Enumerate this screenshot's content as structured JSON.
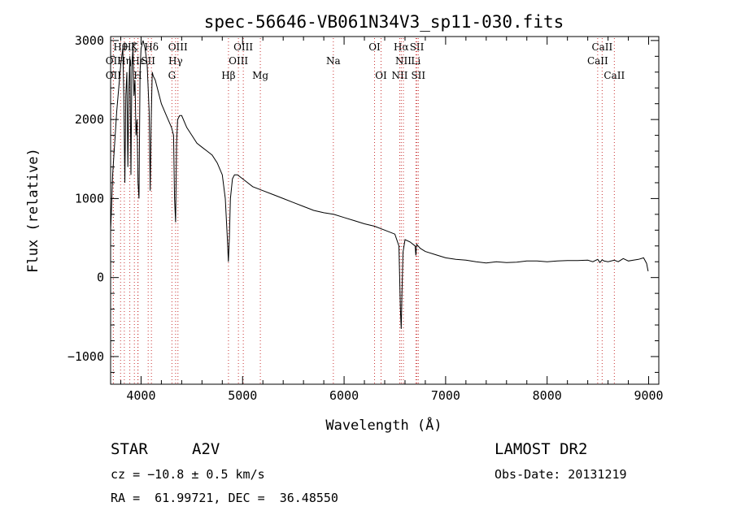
{
  "chart_data": {
    "type": "line",
    "title": "spec-56646-VB061N34V3_sp11-030.fits",
    "xlabel": "Wavelength (Å)",
    "ylabel": "Flux (relative)",
    "xlim": [
      3700,
      9100
    ],
    "ylim": [
      -1350,
      3050
    ],
    "xticks": [
      4000,
      5000,
      6000,
      7000,
      8000,
      9000
    ],
    "yticks": [
      -1000,
      0,
      1000,
      2000,
      3000
    ],
    "series": [
      {
        "x": [
          3700,
          3710,
          3720,
          3740,
          3760,
          3780,
          3800,
          3820,
          3830,
          3840,
          3850,
          3860,
          3870,
          3880,
          3890,
          3900,
          3910,
          3920,
          3930,
          3940,
          3950,
          3960,
          3970,
          3980,
          3990,
          4000,
          4020,
          4040,
          4060,
          4080,
          4090,
          4100,
          4110,
          4120,
          4140,
          4160,
          4180,
          4200,
          4250,
          4300,
          4320,
          4330,
          4340,
          4350,
          4360,
          4380,
          4400,
          4450,
          4500,
          4550,
          4600,
          4650,
          4700,
          4750,
          4800,
          4830,
          4850,
          4860,
          4870,
          4880,
          4900,
          4920,
          4950,
          5000,
          5100,
          5200,
          5300,
          5400,
          5500,
          5600,
          5700,
          5800,
          5900,
          6000,
          6100,
          6200,
          6300,
          6400,
          6500,
          6540,
          6555,
          6563,
          6570,
          6580,
          6600,
          6650,
          6700,
          6707,
          6715,
          6750,
          6800,
          6900,
          7000,
          7100,
          7200,
          7300,
          7400,
          7500,
          7600,
          7700,
          7800,
          7900,
          8000,
          8100,
          8200,
          8300,
          8400,
          8450,
          8498,
          8520,
          8542,
          8560,
          8600,
          8662,
          8700,
          8750,
          8800,
          8850,
          8900,
          8950,
          8980,
          8990,
          8995
        ],
        "y": [
          600,
          900,
          1300,
          1700,
          2100,
          2400,
          2700,
          2900,
          2300,
          1200,
          2300,
          2600,
          1400,
          2400,
          2800,
          1300,
          2700,
          2900,
          2300,
          2500,
          1800,
          2000,
          1200,
          1000,
          2600,
          2900,
          3000,
          2900,
          2700,
          2100,
          1100,
          2000,
          2600,
          2550,
          2500,
          2400,
          2300,
          2200,
          2050,
          1900,
          1800,
          1000,
          700,
          1700,
          2000,
          2050,
          2050,
          1900,
          1800,
          1700,
          1650,
          1600,
          1550,
          1450,
          1300,
          1000,
          500,
          200,
          500,
          1000,
          1250,
          1300,
          1300,
          1250,
          1150,
          1100,
          1050,
          1000,
          950,
          900,
          850,
          820,
          800,
          760,
          720,
          680,
          650,
          600,
          550,
          400,
          -400,
          -650,
          -200,
          320,
          480,
          450,
          400,
          280,
          420,
          370,
          330,
          290,
          250,
          230,
          220,
          200,
          185,
          200,
          190,
          195,
          210,
          210,
          200,
          210,
          215,
          215,
          220,
          200,
          230,
          190,
          225,
          210,
          200,
          220,
          200,
          240,
          210,
          220,
          230,
          250,
          180,
          110,
          80
        ]
      }
    ],
    "line_markers": [
      {
        "label": "OII",
        "x": 3727,
        "row": 3
      },
      {
        "label": "OII",
        "x": 3727,
        "row": 2
      },
      {
        "label": "Hθ",
        "x": 3798,
        "row": 1
      },
      {
        "label": "Hη",
        "x": 3835,
        "row": 2
      },
      {
        "label": "Hζ",
        "x": 3889,
        "row": 1
      },
      {
        "label": "Hε",
        "x": 3970,
        "row": 2
      },
      {
        "label": "K",
        "x": 3934,
        "row": 1
      },
      {
        "label": "H",
        "x": 3968,
        "row": 3
      },
      {
        "label": "SII",
        "x": 4070,
        "row": 2
      },
      {
        "label": "Hδ",
        "x": 4102,
        "row": 1
      },
      {
        "label": "OIII",
        "x": 4363,
        "row": 1
      },
      {
        "label": "Hγ",
        "x": 4340,
        "row": 2
      },
      {
        "label": "G",
        "x": 4304,
        "row": 3
      },
      {
        "label": "Hβ",
        "x": 4861,
        "row": 3
      },
      {
        "label": "OIII",
        "x": 5007,
        "row": 1
      },
      {
        "label": "OIII",
        "x": 4959,
        "row": 2
      },
      {
        "label": "Mg",
        "x": 5175,
        "row": 3
      },
      {
        "label": "Na",
        "x": 5894,
        "row": 2
      },
      {
        "label": "OI",
        "x": 6300,
        "row": 1
      },
      {
        "label": "OI",
        "x": 6364,
        "row": 3
      },
      {
        "label": "Hα",
        "x": 6563,
        "row": 1
      },
      {
        "label": "NII",
        "x": 6584,
        "row": 2
      },
      {
        "label": "NII",
        "x": 6548,
        "row": 3
      },
      {
        "label": "SII",
        "x": 6717,
        "row": 1
      },
      {
        "label": "Li",
        "x": 6707,
        "row": 2
      },
      {
        "label": "SII",
        "x": 6731,
        "row": 3
      },
      {
        "label": "CaII",
        "x": 8542,
        "row": 1
      },
      {
        "label": "CaII",
        "x": 8498,
        "row": 2
      },
      {
        "label": "CaII",
        "x": 8662,
        "row": 3
      }
    ]
  },
  "info": {
    "object_class": "STAR",
    "subclass": "A2V",
    "survey": "LAMOST DR2",
    "redshift_line": "cz = −10.8 ± 0.5 km/s",
    "obs_date_line": "Obs-Date: 20131219",
    "coords_line": "RA =  61.99721, DEC =  36.48550"
  },
  "colors": {
    "spectrum": "#000000",
    "line_marker": "#c83232"
  }
}
